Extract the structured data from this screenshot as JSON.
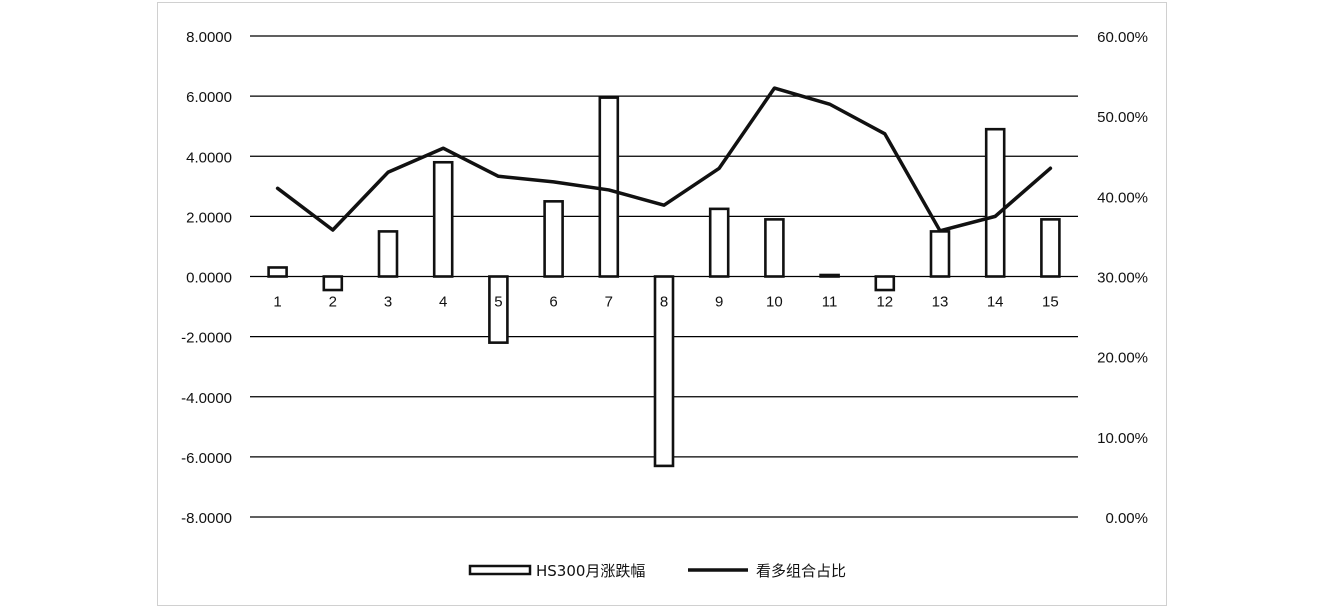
{
  "chart_data": {
    "type": "bar+line",
    "title": "",
    "categories": [
      "1",
      "2",
      "3",
      "4",
      "5",
      "6",
      "7",
      "8",
      "9",
      "10",
      "11",
      "12",
      "13",
      "14",
      "15"
    ],
    "series": [
      {
        "name": "HS300月涨跌幅",
        "type": "bar",
        "axis": "left",
        "values": [
          0.3,
          -0.45,
          1.5,
          3.8,
          -2.2,
          2.5,
          5.95,
          -6.3,
          2.25,
          1.9,
          0.05,
          -0.45,
          1.5,
          4.9,
          1.9
        ]
      },
      {
        "name": "看多组合占比",
        "type": "line",
        "axis": "right",
        "values": [
          0.41,
          0.358,
          0.43,
          0.46,
          0.425,
          0.418,
          0.408,
          0.389,
          0.435,
          0.535,
          0.515,
          0.478,
          0.357,
          0.375,
          0.435
        ]
      }
    ],
    "y_left": {
      "ylim": [
        -8,
        8
      ],
      "ticks": [
        "8.0000",
        "6.0000",
        "4.0000",
        "2.0000",
        "0.0000",
        "-2.0000",
        "-4.0000",
        "-6.0000",
        "-8.0000"
      ]
    },
    "y_right": {
      "ylim": [
        0,
        0.6
      ],
      "ticks": [
        "60.00%",
        "50.00%",
        "40.00%",
        "30.00%",
        "20.00%",
        "10.00%",
        "0.00%"
      ]
    },
    "grid": true,
    "legend_position": "bottom",
    "colors": {
      "bar_fill": "#ffffff",
      "bar_stroke": "#111111",
      "line": "#111111",
      "grid": "#000000"
    }
  }
}
